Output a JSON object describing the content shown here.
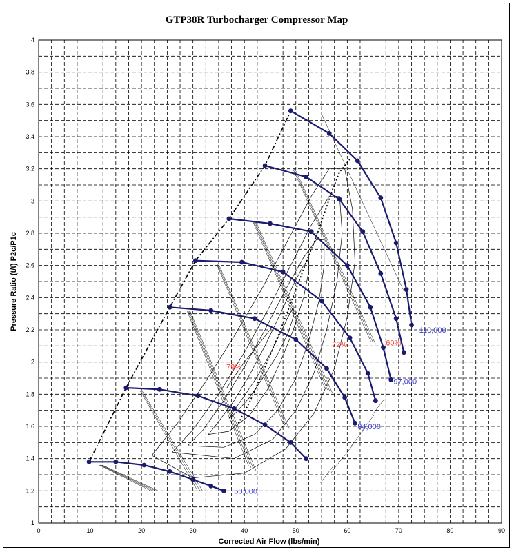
{
  "chart_data": {
    "type": "line",
    "title": "GTP38R Turbocharger Compressor Map",
    "xlabel": "Corrected Air Flow (lbs/min)",
    "ylabel": "Pressure Ratio (t/t) P2c/P1c",
    "xlim": [
      0,
      90
    ],
    "ylim": [
      1,
      4
    ],
    "x_ticks": [
      0,
      10,
      20,
      30,
      40,
      50,
      60,
      70,
      80,
      90
    ],
    "y_ticks": [
      1,
      1.2,
      1.4,
      1.6,
      1.8,
      2,
      2.2,
      2.4,
      2.6,
      2.8,
      3,
      3.2,
      3.4,
      3.6,
      3.8,
      4
    ],
    "grid": true,
    "speed_lines": [
      {
        "label": "50,000",
        "label_at": [
          38,
          1.2
        ],
        "points": [
          [
            9.8,
            1.38
          ],
          [
            15,
            1.38
          ],
          [
            20.5,
            1.36
          ],
          [
            25.5,
            1.32
          ],
          [
            30,
            1.27
          ],
          [
            33.5,
            1.23
          ],
          [
            36,
            1.2
          ]
        ]
      },
      {
        "label": "",
        "points": [
          [
            9.8,
            1.38
          ],
          [
            15,
            1.38
          ],
          [
            20.5,
            1.36
          ],
          [
            25.5,
            1.32
          ],
          [
            30,
            1.27
          ],
          [
            33.5,
            1.23
          ],
          [
            36,
            1.2
          ]
        ],
        "hidden": true
      },
      {
        "label": "84,000",
        "label_at": [
          62,
          1.6
        ],
        "points": [
          [
            17,
            1.84
          ],
          [
            23.5,
            1.83
          ],
          [
            31,
            1.79
          ],
          [
            38,
            1.71
          ],
          [
            44,
            1.61
          ],
          [
            49,
            1.5
          ],
          [
            52,
            1.4
          ]
        ]
      },
      {
        "label": "",
        "points": [
          [
            25.5,
            2.34
          ],
          [
            33.5,
            2.32
          ],
          [
            42,
            2.27
          ],
          [
            50,
            2.14
          ],
          [
            56,
            1.96
          ],
          [
            59.5,
            1.78
          ],
          [
            61.5,
            1.62
          ]
        ]
      },
      {
        "label": "97,000",
        "label_at": [
          69,
          1.88
        ],
        "points": [
          [
            30.5,
            2.63
          ],
          [
            39.5,
            2.62
          ],
          [
            47.5,
            2.56
          ],
          [
            55,
            2.38
          ],
          [
            60.5,
            2.15
          ],
          [
            64,
            1.93
          ],
          [
            65.5,
            1.76
          ]
        ]
      },
      {
        "label": "",
        "points": [
          [
            37,
            2.89
          ],
          [
            45,
            2.86
          ],
          [
            53,
            2.81
          ],
          [
            60,
            2.6
          ],
          [
            64.5,
            2.34
          ],
          [
            67,
            2.09
          ],
          [
            68.5,
            1.89
          ]
        ]
      },
      {
        "label": "",
        "points": [
          [
            44,
            3.22
          ],
          [
            52,
            3.15
          ],
          [
            58.5,
            3.01
          ],
          [
            63,
            2.81
          ],
          [
            66.5,
            2.55
          ],
          [
            69.5,
            2.27
          ],
          [
            71,
            2.06
          ]
        ]
      },
      {
        "label": "110,000",
        "label_at": [
          74,
          2.2
        ],
        "points": [
          [
            49,
            3.56
          ],
          [
            56.5,
            3.42
          ],
          [
            62,
            3.25
          ],
          [
            66.5,
            3.02
          ],
          [
            69.5,
            2.74
          ],
          [
            71.5,
            2.45
          ],
          [
            72.5,
            2.23
          ]
        ]
      }
    ],
    "surge_line": [
      [
        9.8,
        1.38
      ],
      [
        17,
        1.84
      ],
      [
        25.5,
        2.34
      ],
      [
        30.5,
        2.63
      ],
      [
        37,
        2.89
      ],
      [
        44,
        3.22
      ],
      [
        49,
        3.56
      ]
    ],
    "efficiency_islands": [
      [
        [
          45.5,
          2.22
        ],
        [
          44,
          2.16
        ],
        [
          42,
          2.08
        ],
        [
          40,
          2.0
        ],
        [
          38.5,
          1.93
        ],
        [
          37.4,
          1.88
        ],
        [
          36.8,
          1.85
        ],
        [
          36.6,
          1.84
        ]
      ],
      [
        [
          37,
          1.65
        ],
        [
          38,
          1.7
        ],
        [
          40,
          1.79
        ],
        [
          42.5,
          1.91
        ],
        [
          45,
          2.05
        ],
        [
          47,
          2.18
        ],
        [
          48.5,
          2.28
        ],
        [
          49.5,
          2.34
        ],
        [
          49.5,
          2.28
        ],
        [
          48.5,
          2.18
        ],
        [
          46.5,
          2.05
        ],
        [
          44,
          1.92
        ],
        [
          41,
          1.78
        ],
        [
          38.5,
          1.69
        ],
        [
          37,
          1.65
        ]
      ],
      [
        [
          33,
          1.55
        ],
        [
          35,
          1.63
        ],
        [
          38,
          1.76
        ],
        [
          41,
          1.92
        ],
        [
          44,
          2.1
        ],
        [
          47,
          2.3
        ],
        [
          49.5,
          2.48
        ],
        [
          51.5,
          2.6
        ],
        [
          52.5,
          2.64
        ],
        [
          52.5,
          2.56
        ],
        [
          51.5,
          2.4
        ],
        [
          49.5,
          2.2
        ],
        [
          47,
          2.0
        ],
        [
          44.5,
          1.83
        ],
        [
          41,
          1.67
        ],
        [
          37,
          1.57
        ],
        [
          33,
          1.55
        ]
      ],
      [
        [
          29,
          1.48
        ],
        [
          32,
          1.58
        ],
        [
          36,
          1.76
        ],
        [
          40,
          1.97
        ],
        [
          44,
          2.2
        ],
        [
          48,
          2.45
        ],
        [
          51.5,
          2.65
        ],
        [
          54,
          2.76
        ],
        [
          55.5,
          2.76
        ],
        [
          55.5,
          2.6
        ],
        [
          54.5,
          2.38
        ],
        [
          52.5,
          2.13
        ],
        [
          50,
          1.9
        ],
        [
          46.5,
          1.7
        ],
        [
          42,
          1.55
        ],
        [
          36,
          1.47
        ],
        [
          29,
          1.48
        ]
      ],
      [
        [
          26,
          1.44
        ],
        [
          30,
          1.58
        ],
        [
          35,
          1.8
        ],
        [
          40,
          2.06
        ],
        [
          44.5,
          2.32
        ],
        [
          49,
          2.6
        ],
        [
          53,
          2.85
        ],
        [
          56.5,
          3.03
        ],
        [
          58.5,
          3.03
        ],
        [
          59,
          2.8
        ],
        [
          58,
          2.5
        ],
        [
          56,
          2.2
        ],
        [
          53.5,
          1.93
        ],
        [
          50,
          1.7
        ],
        [
          45.5,
          1.52
        ],
        [
          38,
          1.4
        ],
        [
          26,
          1.44
        ]
      ],
      [
        [
          22,
          1.42
        ],
        [
          27,
          1.62
        ],
        [
          32.5,
          1.88
        ],
        [
          38,
          2.16
        ],
        [
          43.5,
          2.46
        ],
        [
          48.5,
          2.76
        ],
        [
          53,
          3.03
        ],
        [
          56.5,
          3.2
        ],
        [
          59.5,
          3.2
        ],
        [
          61,
          2.95
        ],
        [
          61.5,
          2.62
        ],
        [
          60,
          2.28
        ],
        [
          57.5,
          1.96
        ],
        [
          53.5,
          1.68
        ],
        [
          48,
          1.46
        ],
        [
          40,
          1.31
        ],
        [
          30,
          1.28
        ],
        [
          22,
          1.42
        ]
      ]
    ],
    "choke_ticks": [
      [
        56,
        1.3
      ],
      [
        58,
        1.36
      ],
      [
        60,
        1.44
      ],
      [
        62,
        1.53
      ],
      [
        64,
        1.62
      ],
      [
        66,
        1.72
      ]
    ],
    "labels": [
      {
        "text": "79%",
        "at": [
          36.5,
          1.97
        ],
        "kind": "efficiency"
      },
      {
        "text": "72%",
        "at": [
          57,
          2.11
        ],
        "kind": "efficiency"
      },
      {
        "text": "60%",
        "at": [
          67.5,
          2.12
        ],
        "kind": "efficiency"
      }
    ],
    "peak_efficiency_line": [
      [
        38.5,
        1.6
      ],
      [
        41,
        1.75
      ],
      [
        43.5,
        1.93
      ],
      [
        46,
        2.12
      ],
      [
        48,
        2.28
      ],
      [
        50,
        2.45
      ],
      [
        52,
        2.62
      ],
      [
        54,
        2.78
      ],
      [
        55.5,
        2.92
      ],
      [
        57,
        3.06
      ],
      [
        58.5,
        3.18
      ],
      [
        60.5,
        3.26
      ]
    ]
  }
}
